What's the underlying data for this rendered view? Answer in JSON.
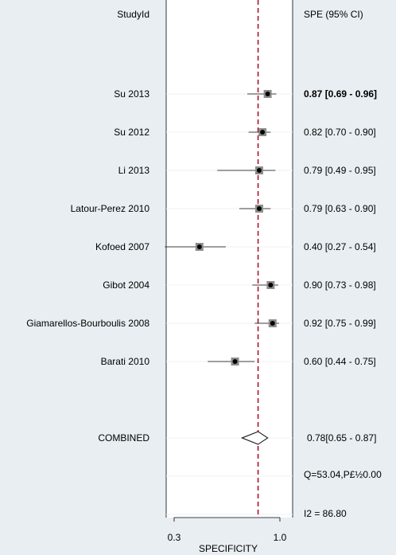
{
  "chart_data": {
    "type": "forest",
    "left_header": "StudyId",
    "right_header": "SPE (95% CI)",
    "xlabel": "SPECIFICITY",
    "x_ticks": [
      {
        "value": 0.3,
        "label": "0.3"
      },
      {
        "value": 1.0,
        "label": "1.0"
      }
    ],
    "reference_line": 0.78,
    "studies": [
      {
        "name": "Su 2013",
        "estimate": 0.87,
        "lower": 0.69,
        "upper": 0.96,
        "ci_text": "0.87 [0.69 - 0.96]",
        "bold": true
      },
      {
        "name": "Su 2012",
        "estimate": 0.82,
        "lower": 0.7,
        "upper": 0.9,
        "ci_text": "0.82 [0.70 - 0.90]"
      },
      {
        "name": "Li 2013",
        "estimate": 0.79,
        "lower": 0.49,
        "upper": 0.95,
        "ci_text": "0.79 [0.49 - 0.95]"
      },
      {
        "name": "Latour-Perez 2010",
        "estimate": 0.79,
        "lower": 0.63,
        "upper": 0.9,
        "ci_text": "0.79 [0.63 - 0.90]"
      },
      {
        "name": "Kofoed 2007",
        "estimate": 0.4,
        "lower": 0.27,
        "upper": 0.54,
        "ci_text": "0.40 [0.27 - 0.54]"
      },
      {
        "name": "Gibot 2004",
        "estimate": 0.9,
        "lower": 0.73,
        "upper": 0.98,
        "ci_text": "0.90 [0.73 - 0.98]"
      },
      {
        "name": "Giamarellos-Bourboulis 2008",
        "estimate": 0.92,
        "lower": 0.75,
        "upper": 0.99,
        "ci_text": "0.92 [0.75 - 0.99]"
      },
      {
        "name": "Barati 2010",
        "estimate": 0.6,
        "lower": 0.44,
        "upper": 0.75,
        "ci_text": "0.60 [0.44 - 0.75]"
      }
    ],
    "combined": {
      "name": "COMBINED",
      "estimate": 0.78,
      "lower": 0.65,
      "upper": 0.87,
      "ci_text": "0.78[0.65 - 0.87]"
    },
    "heterogeneity": [
      "Q=53.04,P£½0.00",
      "I2 = 86.80"
    ],
    "colors": {
      "background": "#e8eef2",
      "panel": "#ffffff",
      "ref_line": "#b0102a",
      "marker_box": "#8c8c8c",
      "point": "#000000"
    }
  }
}
